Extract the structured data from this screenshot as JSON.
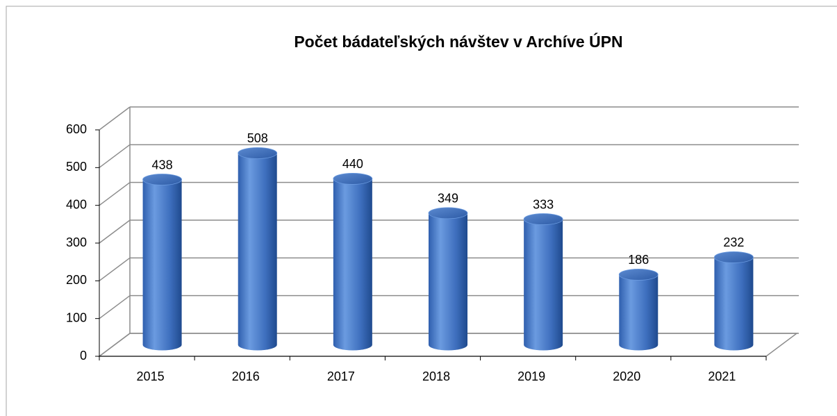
{
  "chart_data": {
    "type": "bar",
    "title": "Počet bádateľských návštev v Archíve ÚPN",
    "categories": [
      "2015",
      "2016",
      "2017",
      "2018",
      "2019",
      "2020",
      "2021"
    ],
    "values": [
      438,
      508,
      440,
      349,
      333,
      186,
      232
    ],
    "color": "#3f72c0",
    "ylim": [
      0,
      600
    ],
    "yticks": [
      0,
      100,
      200,
      300,
      400,
      500,
      600
    ],
    "grid": true
  }
}
